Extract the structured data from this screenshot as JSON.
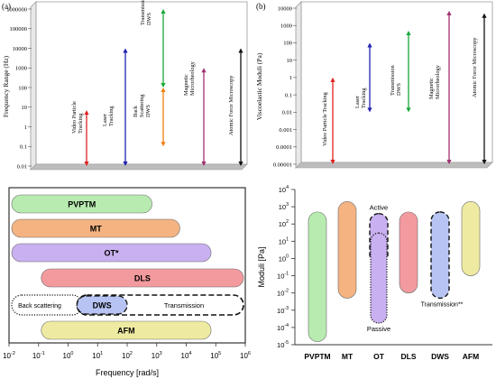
{
  "panel_a": {
    "letter": "(a)"
  },
  "panel_b": {
    "letter": "(b)"
  },
  "chart_data": [
    {
      "type": "range",
      "ylabel": "Frequency Range (Hz)",
      "y_scale": "log",
      "ylim": [
        0.01,
        1000000
      ],
      "yticks": [
        "0.01",
        "0.1",
        "1",
        "10",
        "100",
        "1000",
        "10000",
        "100000",
        "1000000"
      ],
      "color_key": {
        "red": "#e02020",
        "blue": "#2020b0",
        "green": "#18a838",
        "orange": "#f08010",
        "purple": "#a03070",
        "black": "#111111"
      },
      "ranges": [
        {
          "label": "Video Particle Tracking",
          "low": 0.01,
          "high": 7,
          "color": "red"
        },
        {
          "label": "Laser Tracking",
          "low": 0.01,
          "high": 10000,
          "color": "blue"
        },
        {
          "label": "Back Scattering DWS",
          "low": 0.1,
          "high": 100,
          "color": "orange"
        },
        {
          "label": "Transmission DWS",
          "low": 100,
          "high": 1000000,
          "color": "green"
        },
        {
          "label": "Magnetic Microrheology",
          "low": 0.01,
          "high": 1000,
          "color": "purple"
        },
        {
          "label": "Atomic Force Microscopy",
          "low": 0.01,
          "high": 10000,
          "color": "black"
        }
      ]
    },
    {
      "type": "range",
      "ylabel": "Viscoelastic Moduli (Pa)",
      "y_scale": "log",
      "ylim": [
        1e-05,
        10000
      ],
      "yticks": [
        "0.00001",
        "0.0001",
        "0.001",
        "0.01",
        "0.1",
        "1",
        "10",
        "100",
        "1000",
        "10000"
      ],
      "ranges": [
        {
          "label": "Video Particle Tracking",
          "low": 1e-05,
          "high": 1,
          "color": "red"
        },
        {
          "label": "Laser Tracking",
          "low": 0.01,
          "high": 100,
          "color": "blue"
        },
        {
          "label": "Transmission DWS",
          "low": 0.01,
          "high": 500,
          "color": "green"
        },
        {
          "label": "Magnetic Microrheology",
          "low": 1e-05,
          "high": 7000,
          "color": "purple"
        },
        {
          "label": "Atomic Force Microscopy",
          "low": 1e-05,
          "high": 5000,
          "color": "black"
        }
      ]
    },
    {
      "type": "range",
      "orientation": "horizontal",
      "xlabel": "Frequency [rad/s]",
      "x_scale": "log",
      "xlim": [
        0.01,
        1000000
      ],
      "xtick_exponents": [
        -2,
        -1,
        0,
        1,
        2,
        3,
        4,
        5,
        6
      ],
      "bars": [
        {
          "label": "PVPTM",
          "low": 0.01,
          "high": 800,
          "color": "#b8ebb0"
        },
        {
          "label": "MT",
          "low": 0.01,
          "high": 7000,
          "color": "#f5b382"
        },
        {
          "label": "OT*",
          "low": 0.01,
          "high": 80000,
          "color": "#c9b0f0"
        },
        {
          "label": "DLS",
          "low": 0.1,
          "high": 1000000,
          "color": "#f39a9e"
        },
        {
          "label": "AFM",
          "low": 0.1,
          "high": 80000,
          "color": "#eeeaa2"
        }
      ],
      "dws": {
        "label": "DWS",
        "back_scattering": {
          "label": "Back scattering",
          "low": 0.01,
          "high": 3
        },
        "core": {
          "low": 2,
          "high": 100,
          "color": "#b7c4f3"
        },
        "transmission": {
          "label": "Transmission",
          "low": 2,
          "high": 1000000
        }
      }
    },
    {
      "type": "range",
      "orientation": "vertical",
      "ylabel": "Moduli [Pa]",
      "y_scale": "log",
      "ylim": [
        1e-05,
        10000
      ],
      "ytick_exponents": [
        -5,
        -4,
        -3,
        -2,
        -1,
        0,
        1,
        2,
        3,
        4
      ],
      "categories": [
        "PVPTM",
        "MT",
        "OT",
        "DLS",
        "DWS",
        "AFM"
      ],
      "bars": [
        {
          "label": "PVPTM",
          "low": 1.5e-05,
          "high": 500,
          "color": "#b8ebb0"
        },
        {
          "label": "MT",
          "low": 0.005,
          "high": 2000,
          "color": "#f5b382"
        },
        {
          "label": "OT",
          "low": 0.0002,
          "high": 500,
          "color": "#c9b0f0"
        },
        {
          "label": "DLS",
          "low": 0.01,
          "high": 500,
          "color": "#f39a9e"
        },
        {
          "label": "DWS",
          "low": 0.005,
          "high": 500,
          "color": "#b7c4f3"
        },
        {
          "label": "AFM",
          "low": 0.1,
          "high": 2000,
          "color": "#eeeaa2"
        }
      ],
      "annotations": {
        "active": "Active",
        "passive": "Passive",
        "transmission": "Transmission**"
      }
    }
  ]
}
